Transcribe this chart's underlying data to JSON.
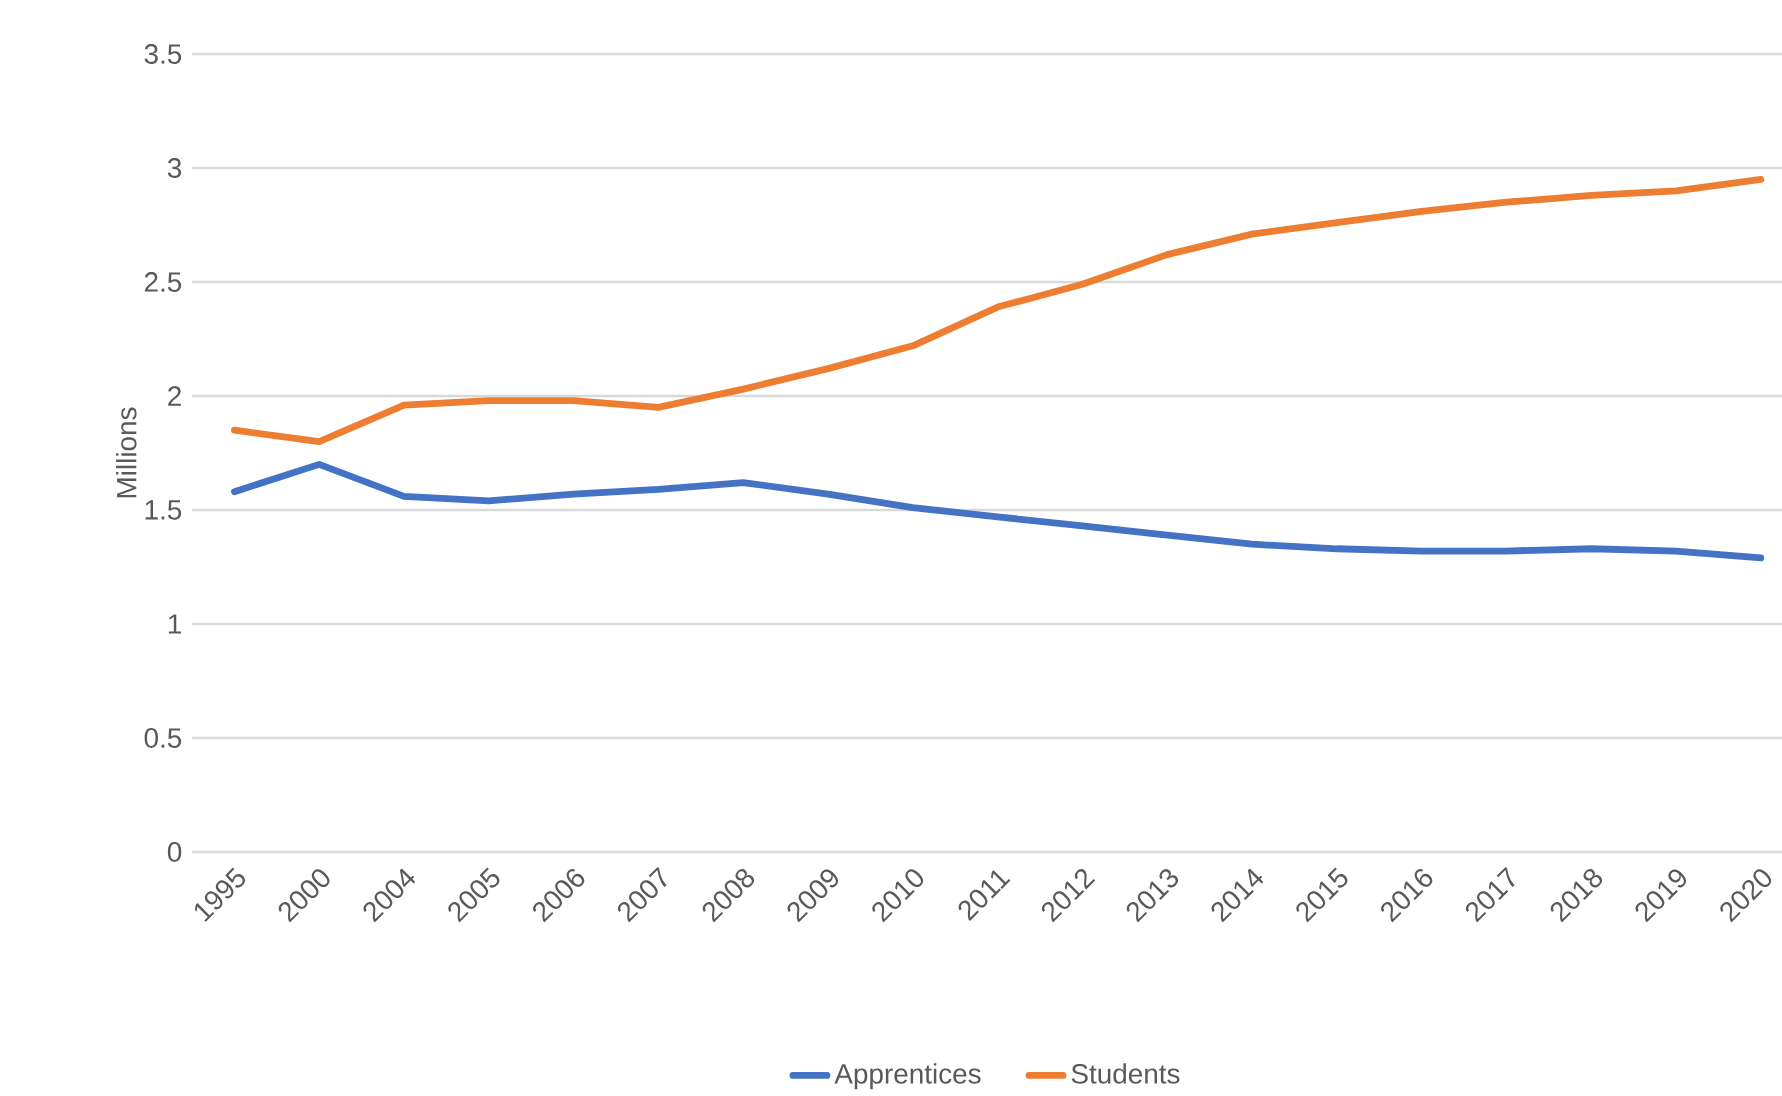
{
  "chart_data": {
    "type": "line",
    "ylabel": "Millions",
    "categories": [
      "1995",
      "2000",
      "2004",
      "2005",
      "2006",
      "2007",
      "2008",
      "2009",
      "2010",
      "2011",
      "2012",
      "2013",
      "2014",
      "2015",
      "2016",
      "2017",
      "2018",
      "2019",
      "2020"
    ],
    "series": [
      {
        "name": "Apprentices",
        "color": "#4472c4",
        "values": [
          1.58,
          1.7,
          1.56,
          1.54,
          1.57,
          1.59,
          1.62,
          1.57,
          1.51,
          1.47,
          1.43,
          1.39,
          1.35,
          1.33,
          1.32,
          1.32,
          1.33,
          1.32,
          1.29
        ]
      },
      {
        "name": "Students",
        "color": "#ed7d31",
        "values": [
          1.85,
          1.8,
          1.96,
          1.98,
          1.98,
          1.95,
          2.03,
          2.12,
          2.22,
          2.39,
          2.49,
          2.62,
          2.71,
          2.76,
          2.81,
          2.85,
          2.88,
          2.9,
          2.95
        ]
      }
    ],
    "ylim": [
      0,
      3.5
    ],
    "yticks": [
      0,
      0.5,
      1,
      1.5,
      2,
      2.5,
      3,
      3.5
    ],
    "grid": "y",
    "legend": "bottom"
  }
}
